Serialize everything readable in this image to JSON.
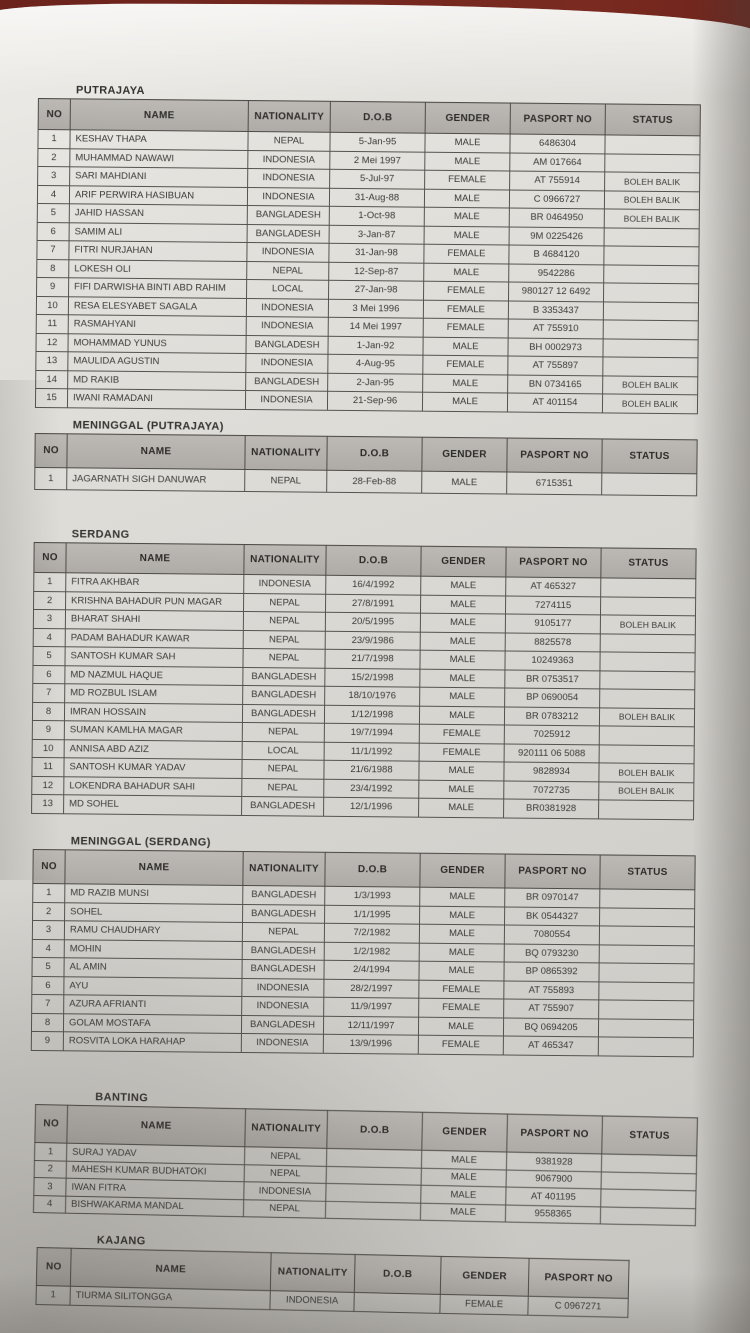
{
  "colors": {
    "table_surface": "#6b231c",
    "paper": "#d9d7d2",
    "ink": "#3b3936",
    "header_cell": "#b2afaa"
  },
  "tables": [
    {
      "title": "PUTRAJAYA",
      "columns": [
        "NO",
        "NAME",
        "NATIONALITY",
        "D.O.B",
        "GENDER",
        "PASPORT NO",
        "STATUS"
      ],
      "rows": [
        [
          "1",
          "KESHAV THAPA",
          "NEPAL",
          "5-Jan-95",
          "MALE",
          "6486304",
          ""
        ],
        [
          "2",
          "MUHAMMAD NAWAWI",
          "INDONESIA",
          "2 Mei 1997",
          "MALE",
          "AM 017664",
          ""
        ],
        [
          "3",
          "SARI MAHDIANI",
          "INDONESIA",
          "5-Jul-97",
          "FEMALE",
          "AT 755914",
          "BOLEH BALIK"
        ],
        [
          "4",
          "ARIF PERWIRA HASIBUAN",
          "INDONESIA",
          "31-Aug-88",
          "MALE",
          "C 0966727",
          "BOLEH BALIK"
        ],
        [
          "5",
          "JAHID HASSAN",
          "BANGLADESH",
          "1-Oct-98",
          "MALE",
          "BR 0464950",
          "BOLEH BALIK"
        ],
        [
          "6",
          "SAMIM ALI",
          "BANGLADESH",
          "3-Jan-87",
          "MALE",
          "9M 0225426",
          ""
        ],
        [
          "7",
          "FITRI NURJAHAN",
          "INDONESIA",
          "31-Jan-98",
          "FEMALE",
          "B 4684120",
          ""
        ],
        [
          "8",
          "LOKESH OLI",
          "NEPAL",
          "12-Sep-87",
          "MALE",
          "9542286",
          ""
        ],
        [
          "9",
          "FIFI DARWISHA BINTI ABD RAHIM",
          "LOCAL",
          "27-Jan-98",
          "FEMALE",
          "980127 12 6492",
          ""
        ],
        [
          "10",
          "RESA ELESYABET SAGALA",
          "INDONESIA",
          "3 Mei 1996",
          "FEMALE",
          "B 3353437",
          ""
        ],
        [
          "11",
          "RASMAHYANI",
          "INDONESIA",
          "14 Mei 1997",
          "FEMALE",
          "AT 755910",
          ""
        ],
        [
          "12",
          "MOHAMMAD YUNUS",
          "BANGLADESH",
          "1-Jan-92",
          "MALE",
          "BH 0002973",
          ""
        ],
        [
          "13",
          "MAULIDA AGUSTIN",
          "INDONESIA",
          "4-Aug-95",
          "FEMALE",
          "AT 755897",
          ""
        ],
        [
          "14",
          "MD RAKIB",
          "BANGLADESH",
          "2-Jan-95",
          "MALE",
          "BN 0734165",
          "BOLEH BALIK"
        ],
        [
          "15",
          "IWANI RAMADANI",
          "INDONESIA",
          "21-Sep-96",
          "MALE",
          "AT 401154",
          "BOLEH BALIK"
        ]
      ]
    },
    {
      "title": "MENINGGAL (PUTRAJAYA)",
      "columns": [
        "NO",
        "NAME",
        "NATIONALITY",
        "D.O.B",
        "GENDER",
        "PASPORT NO",
        "STATUS"
      ],
      "rows": [
        [
          "1",
          "JAGARNATH SIGH DANUWAR",
          "NEPAL",
          "28-Feb-88",
          "MALE",
          "6715351",
          ""
        ]
      ]
    },
    {
      "title": "SERDANG",
      "columns": [
        "NO",
        "NAME",
        "NATIONALITY",
        "D.O.B",
        "GENDER",
        "PASPORT NO",
        "STATUS"
      ],
      "rows": [
        [
          "1",
          "FITRA AKHBAR",
          "INDONESIA",
          "16/4/1992",
          "MALE",
          "AT 465327",
          ""
        ],
        [
          "2",
          "KRISHNA BAHADUR PUN MAGAR",
          "NEPAL",
          "27/8/1991",
          "MALE",
          "7274115",
          ""
        ],
        [
          "3",
          "BHARAT SHAHI",
          "NEPAL",
          "20/5/1995",
          "MALE",
          "9105177",
          "BOLEH BALIK"
        ],
        [
          "4",
          "PADAM BAHADUR KAWAR",
          "NEPAL",
          "23/9/1986",
          "MALE",
          "8825578",
          ""
        ],
        [
          "5",
          "SANTOSH KUMAR SAH",
          "NEPAL",
          "21/7/1998",
          "MALE",
          "10249363",
          ""
        ],
        [
          "6",
          "MD NAZMUL HAQUE",
          "BANGLADESH",
          "15/2/1998",
          "MALE",
          "BR 0753517",
          ""
        ],
        [
          "7",
          "MD ROZBUL ISLAM",
          "BANGLADESH",
          "18/10/1976",
          "MALE",
          "BP 0690054",
          ""
        ],
        [
          "8",
          "IMRAN HOSSAIN",
          "BANGLADESH",
          "1/12/1998",
          "MALE",
          "BR 0783212",
          "BOLEH BALIK"
        ],
        [
          "9",
          "SUMAN KAMLHA MAGAR",
          "NEPAL",
          "19/7/1994",
          "FEMALE",
          "7025912",
          ""
        ],
        [
          "10",
          "ANNISA ABD AZIZ",
          "LOCAL",
          "11/1/1992",
          "FEMALE",
          "920111 06 5088",
          ""
        ],
        [
          "11",
          "SANTOSH KUMAR YADAV",
          "NEPAL",
          "21/6/1988",
          "MALE",
          "9828934",
          "BOLEH BALIK"
        ],
        [
          "12",
          "LOKENDRA BAHADUR SAHI",
          "NEPAL",
          "23/4/1992",
          "MALE",
          "7072735",
          "BOLEH BALIK"
        ],
        [
          "13",
          "MD SOHEL",
          "BANGLADESH",
          "12/1/1996",
          "MALE",
          "BR0381928",
          ""
        ]
      ]
    },
    {
      "title": "MENINGGAL (SERDANG)",
      "columns": [
        "NO",
        "NAME",
        "NATIONALITY",
        "D.O.B",
        "GENDER",
        "PASPORT NO",
        "STATUS"
      ],
      "rows": [
        [
          "1",
          "MD RAZIB MUNSI",
          "BANGLADESH",
          "1/3/1993",
          "MALE",
          "BR 0970147",
          ""
        ],
        [
          "2",
          "SOHEL",
          "BANGLADESH",
          "1/1/1995",
          "MALE",
          "BK 0544327",
          ""
        ],
        [
          "3",
          "RAMU CHAUDHARY",
          "NEPAL",
          "7/2/1982",
          "MALE",
          "7080554",
          ""
        ],
        [
          "4",
          "MOHIN",
          "BANGLADESH",
          "1/2/1982",
          "MALE",
          "BQ 0793230",
          ""
        ],
        [
          "5",
          "AL AMIN",
          "BANGLADESH",
          "2/4/1994",
          "MALE",
          "BP 0865392",
          ""
        ],
        [
          "6",
          "AYU",
          "INDONESIA",
          "28/2/1997",
          "FEMALE",
          "AT 755893",
          ""
        ],
        [
          "7",
          "AZURA AFRIANTI",
          "INDONESIA",
          "11/9/1997",
          "FEMALE",
          "AT 755907",
          ""
        ],
        [
          "8",
          "GOLAM MOSTAFA",
          "BANGLADESH",
          "12/11/1997",
          "MALE",
          "BQ 0694205",
          ""
        ],
        [
          "9",
          "ROSVITA LOKA HARAHAP",
          "INDONESIA",
          "13/9/1996",
          "FEMALE",
          "AT 465347",
          ""
        ]
      ]
    },
    {
      "title": "BANTING",
      "columns": [
        "NO",
        "NAME",
        "NATIONALITY",
        "D.O.B",
        "GENDER",
        "PASPORT NO",
        "STATUS"
      ],
      "rows": [
        [
          "1",
          "SURAJ YADAV",
          "NEPAL",
          "",
          "MALE",
          "9381928",
          ""
        ],
        [
          "2",
          "MAHESH KUMAR BUDHATOKI",
          "NEPAL",
          "",
          "MALE",
          "9067900",
          ""
        ],
        [
          "3",
          "IWAN FITRA",
          "INDONESIA",
          "",
          "MALE",
          "AT 401195",
          ""
        ],
        [
          "4",
          "BISHWAKARMA MANDAL",
          "NEPAL",
          "",
          "MALE",
          "9558365",
          ""
        ]
      ]
    },
    {
      "title": "KAJANG",
      "columns": [
        "NO",
        "NAME",
        "NATIONALITY",
        "D.O.B",
        "GENDER",
        "PASPORT NO"
      ],
      "rows": [
        [
          "1",
          "TIURMA SILITONGGA",
          "INDONESIA",
          "",
          "FEMALE",
          "C 0967271"
        ]
      ]
    }
  ]
}
